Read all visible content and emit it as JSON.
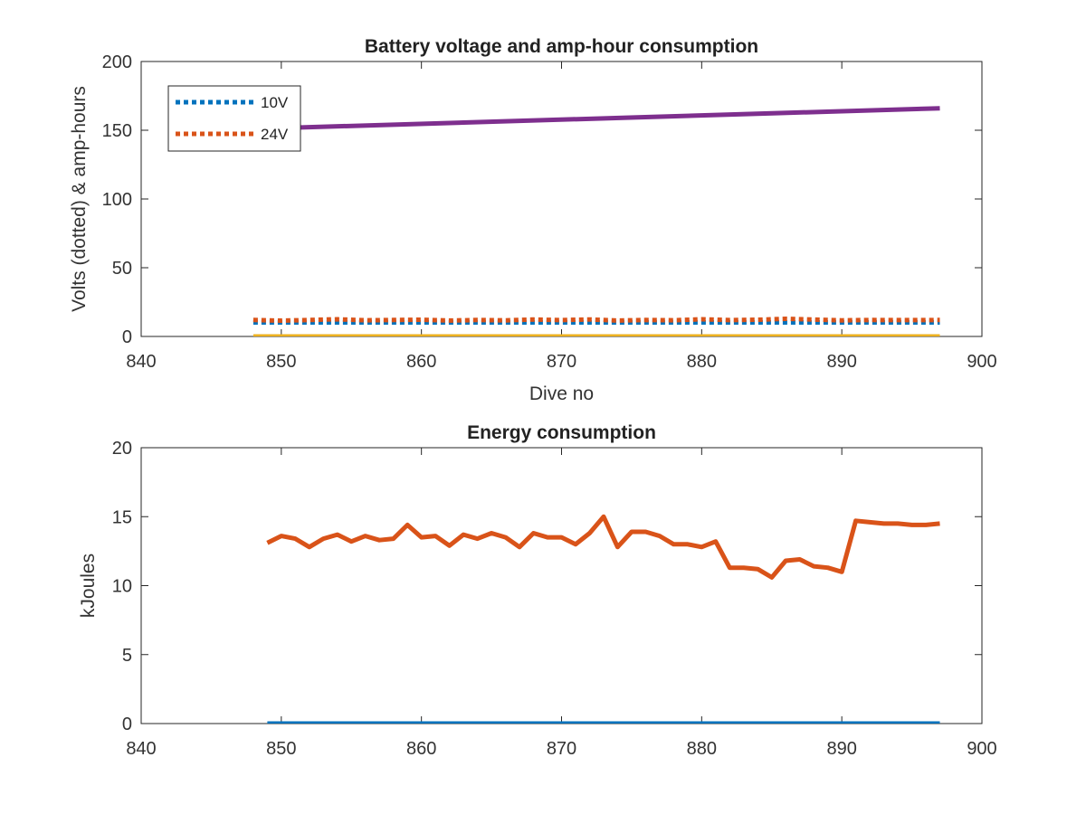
{
  "chart_data": [
    {
      "type": "line",
      "title": "Battery voltage and amp-hour consumption",
      "xlabel": "Dive no",
      "ylabel": "Volts (dotted) & amp-hours",
      "xlim": [
        840,
        900
      ],
      "ylim": [
        0,
        200
      ],
      "xticks": [
        840,
        850,
        860,
        870,
        880,
        890,
        900
      ],
      "yticks": [
        0,
        50,
        100,
        150,
        200
      ],
      "grid": false,
      "legend": "top-left",
      "series": [
        {
          "name": "10V",
          "style": "dotted",
          "color": "#0072BD",
          "x": [
            848,
            897
          ],
          "y": [
            10.2,
            10.2
          ]
        },
        {
          "name": "24V",
          "style": "dotted",
          "color": "#D95319",
          "x": [
            848,
            850,
            852,
            854,
            856,
            858,
            860,
            862,
            864,
            866,
            868,
            870,
            872,
            874,
            876,
            878,
            880,
            882,
            884,
            886,
            888,
            890,
            892,
            894,
            897
          ],
          "y": [
            12,
            11.5,
            12,
            12.5,
            11.8,
            12,
            12.2,
            11.6,
            12,
            11.7,
            12.3,
            11.9,
            12.4,
            11.6,
            12,
            11.8,
            12.5,
            11.9,
            12.2,
            12.8,
            12.3,
            11.7,
            12,
            11.9,
            12
          ]
        },
        {
          "style": "solid",
          "color": "#7E2F8E",
          "x": [
            848,
            897
          ],
          "y": [
            151,
            166
          ]
        },
        {
          "style": "solid",
          "color": "#EDB120",
          "x": [
            848,
            897
          ],
          "y": [
            0,
            0
          ]
        }
      ]
    },
    {
      "type": "line",
      "title": "Energy consumption",
      "xlabel": "",
      "ylabel": "kJoules",
      "xlim": [
        840,
        900
      ],
      "ylim": [
        0,
        20
      ],
      "xticks": [
        840,
        850,
        860,
        870,
        880,
        890,
        900
      ],
      "yticks": [
        0,
        5,
        10,
        15,
        20
      ],
      "grid": false,
      "series": [
        {
          "style": "solid",
          "color": "#0072BD",
          "x": [
            849,
            897
          ],
          "y": [
            0,
            0
          ]
        },
        {
          "style": "solid",
          "color": "#D95319",
          "x": [
            849,
            850,
            851,
            852,
            853,
            854,
            855,
            856,
            857,
            858,
            859,
            860,
            861,
            862,
            863,
            864,
            865,
            866,
            867,
            868,
            869,
            870,
            871,
            872,
            873,
            874,
            875,
            876,
            877,
            878,
            879,
            880,
            881,
            882,
            883,
            884,
            885,
            886,
            887,
            888,
            889,
            890,
            891,
            892,
            893,
            894,
            895,
            896,
            897
          ],
          "y": [
            13.1,
            13.6,
            13.4,
            12.8,
            13.4,
            13.7,
            13.2,
            13.6,
            13.3,
            13.4,
            14.4,
            13.5,
            13.6,
            12.9,
            13.7,
            13.4,
            13.8,
            13.5,
            12.8,
            13.8,
            13.5,
            13.5,
            13,
            13.8,
            15,
            12.8,
            13.9,
            13.9,
            13.6,
            13,
            13,
            12.8,
            13.2,
            11.3,
            11.3,
            11.2,
            10.6,
            11.8,
            11.9,
            11.4,
            11.3,
            11,
            14.7,
            14.6,
            14.5,
            14.5,
            14.4,
            14.4,
            14.5
          ]
        }
      ]
    }
  ]
}
